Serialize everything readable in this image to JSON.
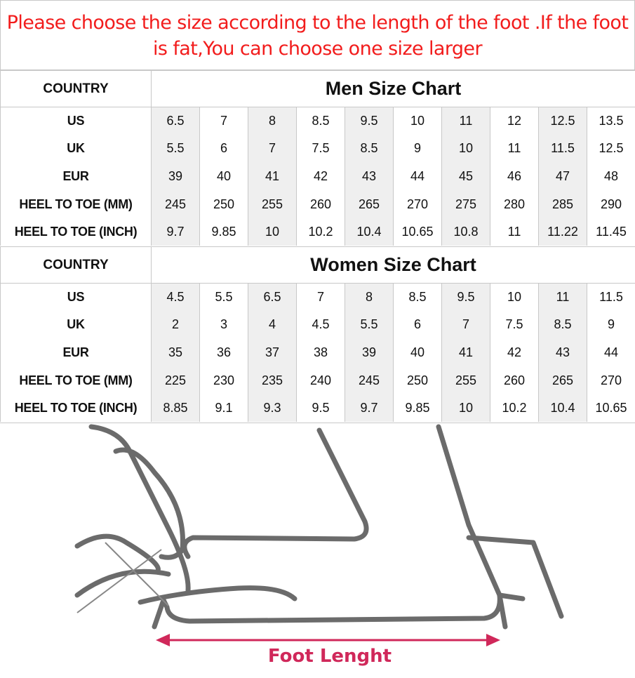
{
  "notice": "Please choose the size according to the length of the foot .If the foot is fat,You can choose one size larger",
  "shade_color": "#efefef",
  "notice_color": "#f21c1c",
  "tables": [
    {
      "country_label": "COUNTRY",
      "title": "Men Size Chart",
      "rows": [
        {
          "label": "US",
          "values": [
            "6.5",
            "7",
            "8",
            "8.5",
            "9.5",
            "10",
            "11",
            "12",
            "12.5",
            "13.5"
          ]
        },
        {
          "label": "UK",
          "values": [
            "5.5",
            "6",
            "7",
            "7.5",
            "8.5",
            "9",
            "10",
            "11",
            "11.5",
            "12.5"
          ]
        },
        {
          "label": "EUR",
          "values": [
            "39",
            "40",
            "41",
            "42",
            "43",
            "44",
            "45",
            "46",
            "47",
            "48"
          ]
        },
        {
          "label": "HEEL TO TOE (MM)",
          "values": [
            "245",
            "250",
            "255",
            "260",
            "265",
            "270",
            "275",
            "280",
            "285",
            "290"
          ]
        },
        {
          "label": "HEEL TO TOE (INCH)",
          "values": [
            "9.7",
            "9.85",
            "10",
            "10.2",
            "10.4",
            "10.65",
            "10.8",
            "11",
            "11.22",
            "11.45"
          ]
        }
      ]
    },
    {
      "country_label": "COUNTRY",
      "title": "Women Size Chart",
      "rows": [
        {
          "label": "US",
          "values": [
            "4.5",
            "5.5",
            "6.5",
            "7",
            "8",
            "8.5",
            "9.5",
            "10",
            "11",
            "11.5"
          ]
        },
        {
          "label": "UK",
          "values": [
            "2",
            "3",
            "4",
            "4.5",
            "5.5",
            "6",
            "7",
            "7.5",
            "8.5",
            "9"
          ]
        },
        {
          "label": "EUR",
          "values": [
            "35",
            "36",
            "37",
            "38",
            "39",
            "40",
            "41",
            "42",
            "43",
            "44"
          ]
        },
        {
          "label": "HEEL TO TOE (MM)",
          "values": [
            "225",
            "230",
            "235",
            "240",
            "245",
            "250",
            "255",
            "260",
            "265",
            "270"
          ]
        },
        {
          "label": "HEEL TO TOE (INCH)",
          "values": [
            "8.85",
            "9.1",
            "9.3",
            "9.5",
            "9.7",
            "9.85",
            "10",
            "10.2",
            "10.4",
            "10.65"
          ]
        }
      ]
    }
  ],
  "illustration": {
    "caption": "Foot Lenght",
    "caption_color": "#d0285a",
    "line_color": "#6b6b6b"
  }
}
